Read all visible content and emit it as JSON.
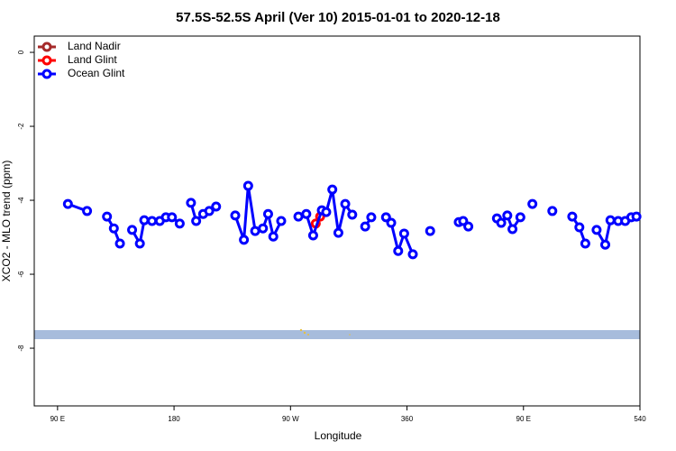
{
  "chart_data": {
    "type": "line",
    "title": "57.5S-52.5S April (Ver 10)   2015-01-01 to 2020-12-18",
    "x_label": "Longitude",
    "y_label": "XCO2 - MLO trend (ppm)",
    "xlim": [
      72,
      540
    ],
    "ylim": [
      -9.56,
      0.44
    ],
    "xticks": [
      {
        "value": 90,
        "label": "90 E"
      },
      180,
      {
        "value": 270,
        "label": "90 W"
      },
      360,
      {
        "value": 450,
        "label": "90 E"
      },
      540
    ],
    "yticks": [
      0,
      -2,
      -4,
      -6,
      -8
    ],
    "legend": "top-left",
    "series": [
      {
        "name": "Land Nadir",
        "color": "#a52a2a",
        "x": [],
        "values": []
      },
      {
        "name": "Land Glint",
        "color": "#ff0000",
        "x": [
          289.5,
          292.9
        ],
        "values": [
          -4.63,
          -4.44
        ]
      },
      {
        "name": "Ocean Glint",
        "color": "#0000ff",
        "x": [
          98.0,
          112.8,
          null,
          128.2,
          133.5,
          138.2,
          null,
          147.6,
          153.6,
          157.0,
          163.0,
          169.0,
          173.7,
          178.4,
          184.4,
          null,
          193.1,
          197.1,
          202.5,
          207.2,
          212.5,
          null,
          227.3,
          234.0,
          237.3,
          242.7,
          248.7,
          252.7,
          256.7,
          262.8,
          null,
          276.1,
          282.2,
          287.5,
          294.2,
          297.6,
          302.3,
          307.0,
          312.3,
          317.7,
          null,
          327.7,
          332.4,
          null,
          343.8,
          347.8,
          353.2,
          357.8,
          364.5,
          null,
          377.9,
          null,
          400.0,
          403.4,
          407.4,
          null,
          429.5,
          432.8,
          437.5,
          441.5,
          447.6,
          null,
          456.9,
          null,
          472.3,
          null,
          487.7,
          493.2,
          497.8,
          null,
          506.5,
          513.2,
          517.2,
          523.2,
          528.6,
          533.3,
          537.3
        ],
        "values": [
          -4.1,
          -4.29,
          null,
          -4.44,
          -4.76,
          -5.17,
          null,
          -4.8,
          -5.17,
          -4.54,
          -4.56,
          -4.56,
          -4.46,
          -4.46,
          -4.63,
          null,
          -4.07,
          -4.56,
          -4.37,
          -4.29,
          -4.17,
          null,
          -4.41,
          -5.07,
          -3.61,
          -4.83,
          -4.76,
          -4.37,
          -4.98,
          -4.56,
          null,
          -4.44,
          -4.37,
          -4.95,
          -4.27,
          -4.32,
          -3.71,
          -4.88,
          -4.1,
          -4.39,
          null,
          -4.71,
          -4.46,
          null,
          -4.46,
          -4.61,
          -5.37,
          -4.9,
          -5.46,
          null,
          -4.83,
          null,
          -4.59,
          -4.56,
          -4.71,
          null,
          -4.49,
          -4.61,
          -4.41,
          -4.78,
          -4.46,
          null,
          -4.1,
          null,
          -4.29,
          null,
          -4.44,
          -4.73,
          -5.17,
          null,
          -4.8,
          -5.2,
          -4.54,
          -4.56,
          -4.56,
          -4.46,
          -4.44
        ]
      }
    ]
  }
}
